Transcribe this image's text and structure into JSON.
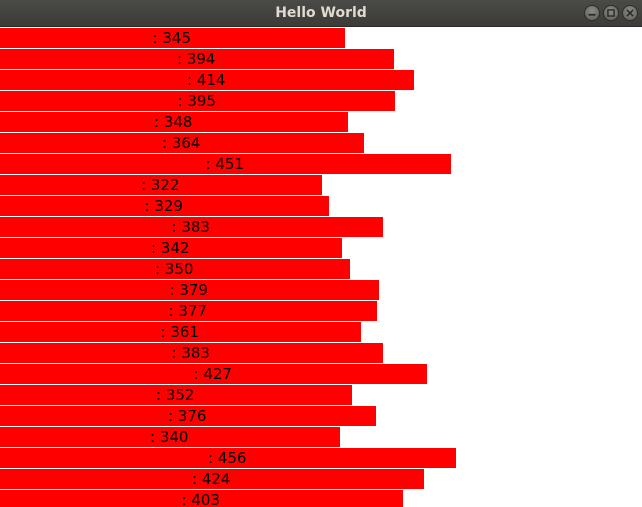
{
  "window": {
    "title": "Hello World",
    "controls": {
      "minimize_icon": "minimize-icon",
      "maximize_icon": "maximize-icon",
      "close_icon": "close-icon"
    }
  },
  "colors": {
    "bar": "#ff0000",
    "background": "#ffffff",
    "titlebar": "#3c3b37",
    "title_text": "#dfdbd2"
  },
  "chart_data": {
    "type": "bar",
    "orientation": "horizontal",
    "label_prefix": ": ",
    "values": [
      345,
      394,
      414,
      395,
      348,
      364,
      451,
      322,
      329,
      383,
      342,
      350,
      379,
      377,
      361,
      383,
      427,
      352,
      376,
      340,
      456,
      424,
      403
    ]
  },
  "bars": [
    {
      "label": ": 345"
    },
    {
      "label": ": 394"
    },
    {
      "label": ": 414"
    },
    {
      "label": ": 395"
    },
    {
      "label": ": 348"
    },
    {
      "label": ": 364"
    },
    {
      "label": ": 451"
    },
    {
      "label": ": 322"
    },
    {
      "label": ": 329"
    },
    {
      "label": ": 383"
    },
    {
      "label": ": 342"
    },
    {
      "label": ": 350"
    },
    {
      "label": ": 379"
    },
    {
      "label": ": 377"
    },
    {
      "label": ": 361"
    },
    {
      "label": ": 383"
    },
    {
      "label": ": 427"
    },
    {
      "label": ": 352"
    },
    {
      "label": ": 376"
    },
    {
      "label": ": 340"
    },
    {
      "label": ": 456"
    },
    {
      "label": ": 424"
    },
    {
      "label": ": 403"
    }
  ]
}
